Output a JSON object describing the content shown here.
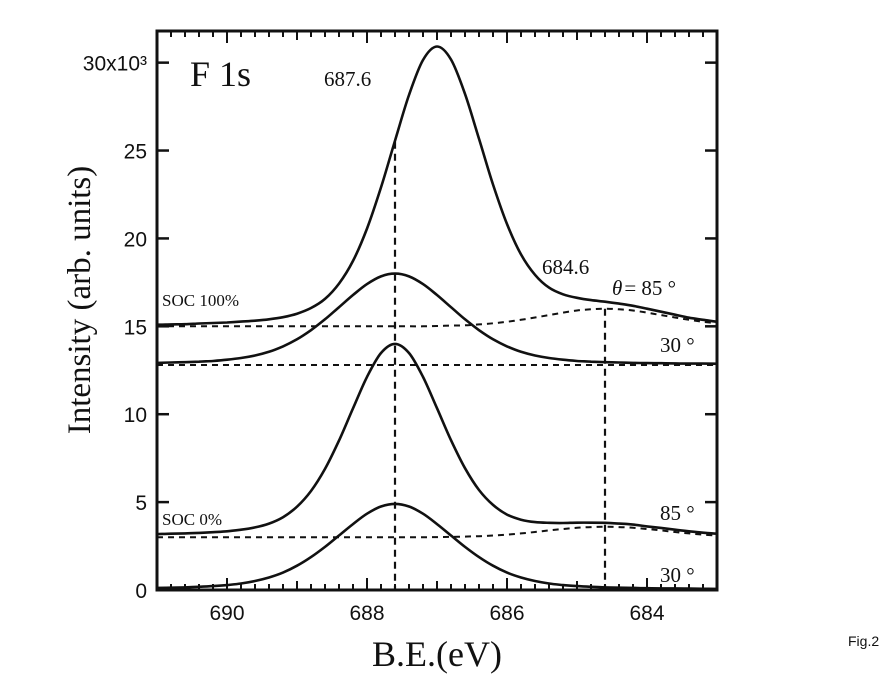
{
  "chart_data": {
    "type": "line",
    "panel_label": "F 1s",
    "xlabel": "B.E.(eV)",
    "ylabel": "Intensity (arb. units)",
    "xlim": [
      691,
      683
    ],
    "x_reversed": true,
    "ylim": [
      0,
      31.8
    ],
    "x_ticks": [
      690,
      688,
      686,
      684
    ],
    "x_tick_labels": [
      "690",
      "688",
      "686",
      "684"
    ],
    "y_ticks": [
      0,
      5,
      10,
      15,
      20,
      25,
      30
    ],
    "y_tick_labels": [
      "0",
      "5",
      "10",
      "15",
      "20",
      "25",
      "30x10³"
    ],
    "grid": false,
    "legend": "none",
    "line_color": "#111111",
    "x": [
      691.0,
      690.8,
      690.6,
      690.4,
      690.2,
      690.0,
      689.8,
      689.6,
      689.4,
      689.2,
      689.0,
      688.8,
      688.6,
      688.4,
      688.2,
      688.0,
      687.8,
      687.6,
      687.4,
      687.2,
      687.0,
      686.8,
      686.6,
      686.4,
      686.2,
      686.0,
      685.8,
      685.6,
      685.4,
      685.2,
      685.0,
      684.8,
      684.6,
      684.4,
      684.2,
      684.0,
      683.8,
      683.6,
      683.4,
      683.2,
      683.0
    ],
    "series": [
      {
        "group": "SOC 100%",
        "name": "85 °",
        "measured": [
          15.09,
          15.11,
          15.12,
          15.16,
          15.19,
          15.22,
          15.27,
          15.32,
          15.4,
          15.52,
          15.72,
          16.04,
          16.56,
          17.43,
          18.72,
          20.56,
          22.9,
          25.56,
          28.16,
          30.15,
          30.92,
          30.18,
          28.22,
          25.67,
          23.07,
          20.82,
          19.09,
          17.93,
          17.2,
          16.82,
          16.62,
          16.49,
          16.4,
          16.29,
          16.17,
          16.0,
          15.83,
          15.66,
          15.49,
          15.37,
          15.26
        ],
        "fit_background": [
          15.0,
          15.0,
          15.0,
          15.0,
          15.0,
          15.0,
          15.0,
          15.0,
          15.0,
          15.0,
          15.0,
          15.0,
          15.0,
          15.0,
          15.0,
          15.0,
          15.0,
          15.0,
          15.0,
          15.0,
          15.02,
          15.04,
          15.06,
          15.11,
          15.17,
          15.26,
          15.37,
          15.5,
          15.64,
          15.78,
          15.9,
          15.97,
          16.0,
          15.97,
          15.9,
          15.78,
          15.64,
          15.5,
          15.37,
          15.26,
          15.17
        ]
      },
      {
        "group": "SOC 100%",
        "name": "30 °",
        "measured": [
          12.92,
          12.94,
          12.96,
          12.99,
          13.03,
          13.1,
          13.2,
          13.34,
          13.55,
          13.86,
          14.26,
          14.78,
          15.4,
          16.09,
          16.78,
          17.4,
          17.84,
          18.0,
          17.84,
          17.4,
          16.78,
          16.09,
          15.4,
          14.78,
          14.26,
          13.86,
          13.55,
          13.34,
          13.2,
          13.1,
          13.03,
          12.99,
          12.96,
          12.94,
          12.92,
          12.91,
          12.9,
          12.89,
          12.88,
          12.88,
          12.87
        ],
        "fit_background": [
          12.8,
          12.8,
          12.8,
          12.8,
          12.8,
          12.8,
          12.8,
          12.8,
          12.8,
          12.8,
          12.8,
          12.8,
          12.8,
          12.8,
          12.8,
          12.8,
          12.8,
          12.8,
          12.8,
          12.8,
          12.8,
          12.8,
          12.8,
          12.8,
          12.8,
          12.8,
          12.8,
          12.8,
          12.8,
          12.8,
          12.8,
          12.8,
          12.8,
          12.8,
          12.8,
          12.8,
          12.8,
          12.8,
          12.8,
          12.8,
          12.8
        ]
      },
      {
        "group": "SOC 0%",
        "name": "85 °",
        "measured": [
          3.18,
          3.2,
          3.22,
          3.25,
          3.29,
          3.34,
          3.43,
          3.56,
          3.78,
          4.14,
          4.74,
          5.63,
          6.89,
          8.5,
          10.33,
          12.12,
          13.48,
          14.0,
          13.48,
          12.12,
          10.34,
          8.52,
          6.93,
          5.69,
          4.84,
          4.29,
          4.0,
          3.86,
          3.82,
          3.81,
          3.83,
          3.83,
          3.82,
          3.78,
          3.72,
          3.62,
          3.53,
          3.43,
          3.34,
          3.26,
          3.2
        ],
        "fit_background": [
          3.0,
          3.0,
          3.0,
          3.0,
          3.0,
          3.0,
          3.0,
          3.0,
          3.0,
          3.0,
          3.0,
          3.0,
          3.0,
          3.0,
          3.0,
          3.0,
          3.0,
          3.0,
          3.0,
          3.0,
          3.01,
          3.02,
          3.04,
          3.06,
          3.1,
          3.15,
          3.22,
          3.3,
          3.39,
          3.47,
          3.54,
          3.58,
          3.6,
          3.58,
          3.54,
          3.47,
          3.39,
          3.3,
          3.22,
          3.15,
          3.1
        ]
      },
      {
        "group": "SOC 0%",
        "name": "30 °",
        "measured": [
          0.12,
          0.13,
          0.15,
          0.18,
          0.22,
          0.28,
          0.37,
          0.51,
          0.71,
          0.99,
          1.38,
          1.87,
          2.45,
          3.1,
          3.75,
          4.34,
          4.75,
          4.9,
          4.75,
          4.34,
          3.75,
          3.1,
          2.45,
          1.87,
          1.38,
          0.99,
          0.71,
          0.51,
          0.37,
          0.28,
          0.22,
          0.18,
          0.15,
          0.13,
          0.12,
          0.1,
          0.09,
          0.09,
          0.08,
          0.07,
          0.06
        ]
      }
    ],
    "peak_markers": [
      {
        "label": "687.6",
        "x": 687.6,
        "y_top": 25.5
      },
      {
        "label": "684.6",
        "x": 684.6,
        "y_top": 16.0
      }
    ],
    "annotations": {
      "theta_symbol": "θ",
      "angle_85_top": "= 85 °",
      "angle_30_top": "30 °",
      "angle_85_bottom": "85 °",
      "angle_30_bottom": "30 °",
      "soc_100": "SOC 100%",
      "soc_0": "SOC 0%"
    }
  },
  "figure_label": "Fig.2"
}
